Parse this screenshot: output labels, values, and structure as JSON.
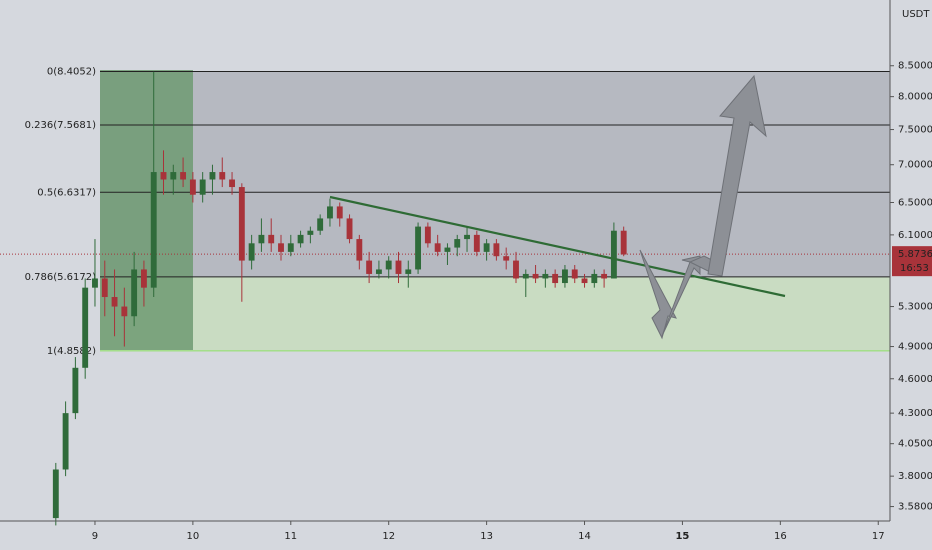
{
  "chart_data": {
    "type": "candlestick",
    "unit": "USDT",
    "log_scale": true,
    "ylim": [
      3.48,
      9.67
    ],
    "yticks": [
      {
        "value": 8.5,
        "label": "8.5000"
      },
      {
        "value": 8.0,
        "label": "8.0000"
      },
      {
        "value": 7.5,
        "label": "7.5000"
      },
      {
        "value": 7.0,
        "label": "7.0000"
      },
      {
        "value": 6.5,
        "label": "6.5000"
      },
      {
        "value": 6.1,
        "label": "6.1000"
      },
      {
        "value": 5.3,
        "label": "5.3000"
      },
      {
        "value": 4.9,
        "label": "4.9000"
      },
      {
        "value": 4.6,
        "label": "4.6000"
      },
      {
        "value": 4.3,
        "label": "4.3000"
      },
      {
        "value": 4.05,
        "label": "4.0500"
      },
      {
        "value": 3.8,
        "label": "3.8000"
      },
      {
        "value": 3.58,
        "label": "3.5800"
      }
    ],
    "xlim": [
      8.03,
      17.12
    ],
    "xticks": [
      9,
      10,
      11,
      12,
      13,
      14,
      15,
      16,
      17
    ],
    "current_day": 15,
    "up_color": "#2f6b3a",
    "down_color": "#a8333a",
    "last_price": 5.8736,
    "countdown": "16:53",
    "fib_levels": [
      {
        "label": "0(8.4052)",
        "value": 8.4052
      },
      {
        "label": "0.236(7.5681)",
        "value": 7.5681
      },
      {
        "label": "0.5(6.6317)",
        "value": 6.6317
      },
      {
        "label": "0.786(5.6172)",
        "value": 5.6172
      },
      {
        "label": "1(4.8582)",
        "value": 4.8582
      }
    ],
    "x": [
      8.6,
      8.7,
      8.8,
      8.9,
      9.0,
      9.1,
      9.2,
      9.3,
      9.4,
      9.5,
      9.6,
      9.7,
      9.8,
      9.9,
      10.0,
      10.1,
      10.2,
      10.3,
      10.4,
      10.5,
      10.6,
      10.7,
      10.8,
      10.9,
      11.0,
      11.1,
      11.2,
      11.3,
      11.4,
      11.5,
      11.6,
      11.7,
      11.8,
      11.9,
      12.0,
      12.1,
      12.2,
      12.3,
      12.4,
      12.5,
      12.6,
      12.7,
      12.8,
      12.9,
      13.0,
      13.1,
      13.2,
      13.3,
      13.4,
      13.5,
      13.6,
      13.7,
      13.8,
      13.9,
      14.0,
      14.1,
      14.2,
      14.3,
      14.4
    ],
    "open": [
      3.5,
      3.85,
      4.3,
      4.7,
      5.5,
      5.6,
      5.4,
      5.3,
      5.2,
      5.7,
      5.5,
      6.9,
      6.8,
      6.9,
      6.8,
      6.6,
      6.8,
      6.9,
      6.8,
      6.7,
      5.8,
      6.0,
      6.1,
      6.0,
      5.9,
      6.0,
      6.1,
      6.15,
      6.3,
      6.45,
      6.3,
      6.05,
      5.8,
      5.65,
      5.7,
      5.8,
      5.65,
      5.7,
      6.2,
      6.0,
      5.9,
      5.95,
      6.05,
      6.1,
      5.9,
      6.0,
      5.85,
      5.8,
      5.6,
      5.65,
      5.6,
      5.65,
      5.55,
      5.7,
      5.6,
      5.55,
      5.65,
      5.6,
      6.15
    ],
    "high": [
      3.9,
      4.4,
      4.8,
      5.6,
      6.05,
      5.8,
      5.7,
      5.5,
      5.9,
      5.8,
      8.4,
      7.2,
      7.0,
      7.1,
      6.9,
      6.9,
      7.0,
      7.1,
      6.9,
      6.75,
      6.1,
      6.3,
      6.3,
      6.1,
      6.1,
      6.15,
      6.2,
      6.35,
      6.55,
      6.5,
      6.35,
      6.1,
      5.9,
      5.8,
      5.85,
      5.9,
      5.8,
      6.25,
      6.25,
      6.1,
      6.0,
      6.1,
      6.2,
      6.15,
      6.05,
      6.05,
      5.95,
      5.9,
      5.7,
      5.75,
      5.7,
      5.7,
      5.75,
      5.75,
      5.65,
      5.7,
      5.7,
      6.25,
      6.2
    ],
    "low": [
      3.45,
      3.8,
      4.25,
      4.6,
      5.3,
      5.2,
      5.0,
      4.9,
      5.1,
      5.3,
      5.4,
      6.6,
      6.6,
      6.7,
      6.5,
      6.5,
      6.6,
      6.7,
      6.6,
      5.35,
      5.7,
      5.9,
      5.9,
      5.8,
      5.85,
      5.95,
      6.0,
      6.1,
      6.2,
      6.2,
      6.0,
      5.7,
      5.55,
      5.6,
      5.6,
      5.55,
      5.5,
      5.65,
      5.95,
      5.85,
      5.75,
      5.85,
      5.9,
      5.85,
      5.8,
      5.8,
      5.7,
      5.55,
      5.4,
      5.55,
      5.5,
      5.5,
      5.5,
      5.55,
      5.5,
      5.5,
      5.5,
      5.6,
      5.85
    ],
    "close": [
      3.85,
      4.3,
      4.7,
      5.5,
      5.6,
      5.4,
      5.3,
      5.2,
      5.7,
      5.5,
      6.9,
      6.8,
      6.9,
      6.8,
      6.6,
      6.8,
      6.9,
      6.8,
      6.7,
      5.8,
      6.0,
      6.1,
      6.0,
      5.9,
      6.0,
      6.1,
      6.15,
      6.3,
      6.45,
      6.3,
      6.05,
      5.8,
      5.65,
      5.7,
      5.8,
      5.65,
      5.7,
      6.2,
      6.0,
      5.9,
      5.95,
      6.05,
      6.1,
      5.9,
      6.0,
      5.85,
      5.8,
      5.6,
      5.65,
      5.6,
      5.65,
      5.55,
      5.7,
      5.6,
      5.55,
      5.65,
      5.6,
      6.15,
      5.87
    ]
  }
}
